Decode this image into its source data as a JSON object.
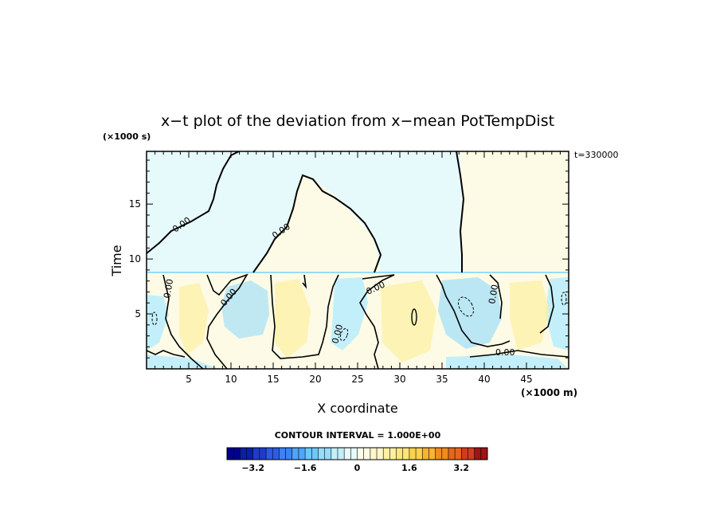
{
  "chart_data": {
    "type": "heatmap",
    "title": "x−t plot of the deviation from x−mean PotTempDist",
    "xlabel": "X coordinate",
    "ylabel": "Time",
    "x_unit": "(×1000 m)",
    "y_unit": "(×1000 s)",
    "time_stamp": "t=330000",
    "xlim": [
      0,
      50
    ],
    "ylim": [
      0,
      19.8
    ],
    "x_ticks": [
      5,
      10,
      15,
      20,
      25,
      30,
      35,
      40,
      45
    ],
    "y_ticks": [
      5,
      10,
      15
    ],
    "contour_label": "0.00",
    "contour_interval_text": "CONTOUR INTERVAL = 1.000E+00",
    "colorbar": {
      "min": -4,
      "max": 4,
      "step": 0.2,
      "tick_values": [
        -3.2,
        -1.6,
        0,
        1.6,
        3.2
      ],
      "tick_labels": [
        "−3.2",
        "−1.6",
        "0",
        "1.6",
        "3.2"
      ],
      "colors": [
        "#00008c",
        "#0a1ea8",
        "#1e3cc8",
        "#2d5ae6",
        "#3c82f0",
        "#50a5f5",
        "#6ec8fa",
        "#96dcfa",
        "#c3effa",
        "#e6fafc",
        "#fdfbe6",
        "#fdf6c8",
        "#fcefa0",
        "#fae678",
        "#fad250",
        "#f5b432",
        "#f08c1e",
        "#e6641e",
        "#d23c1e",
        "#a01414"
      ]
    }
  }
}
